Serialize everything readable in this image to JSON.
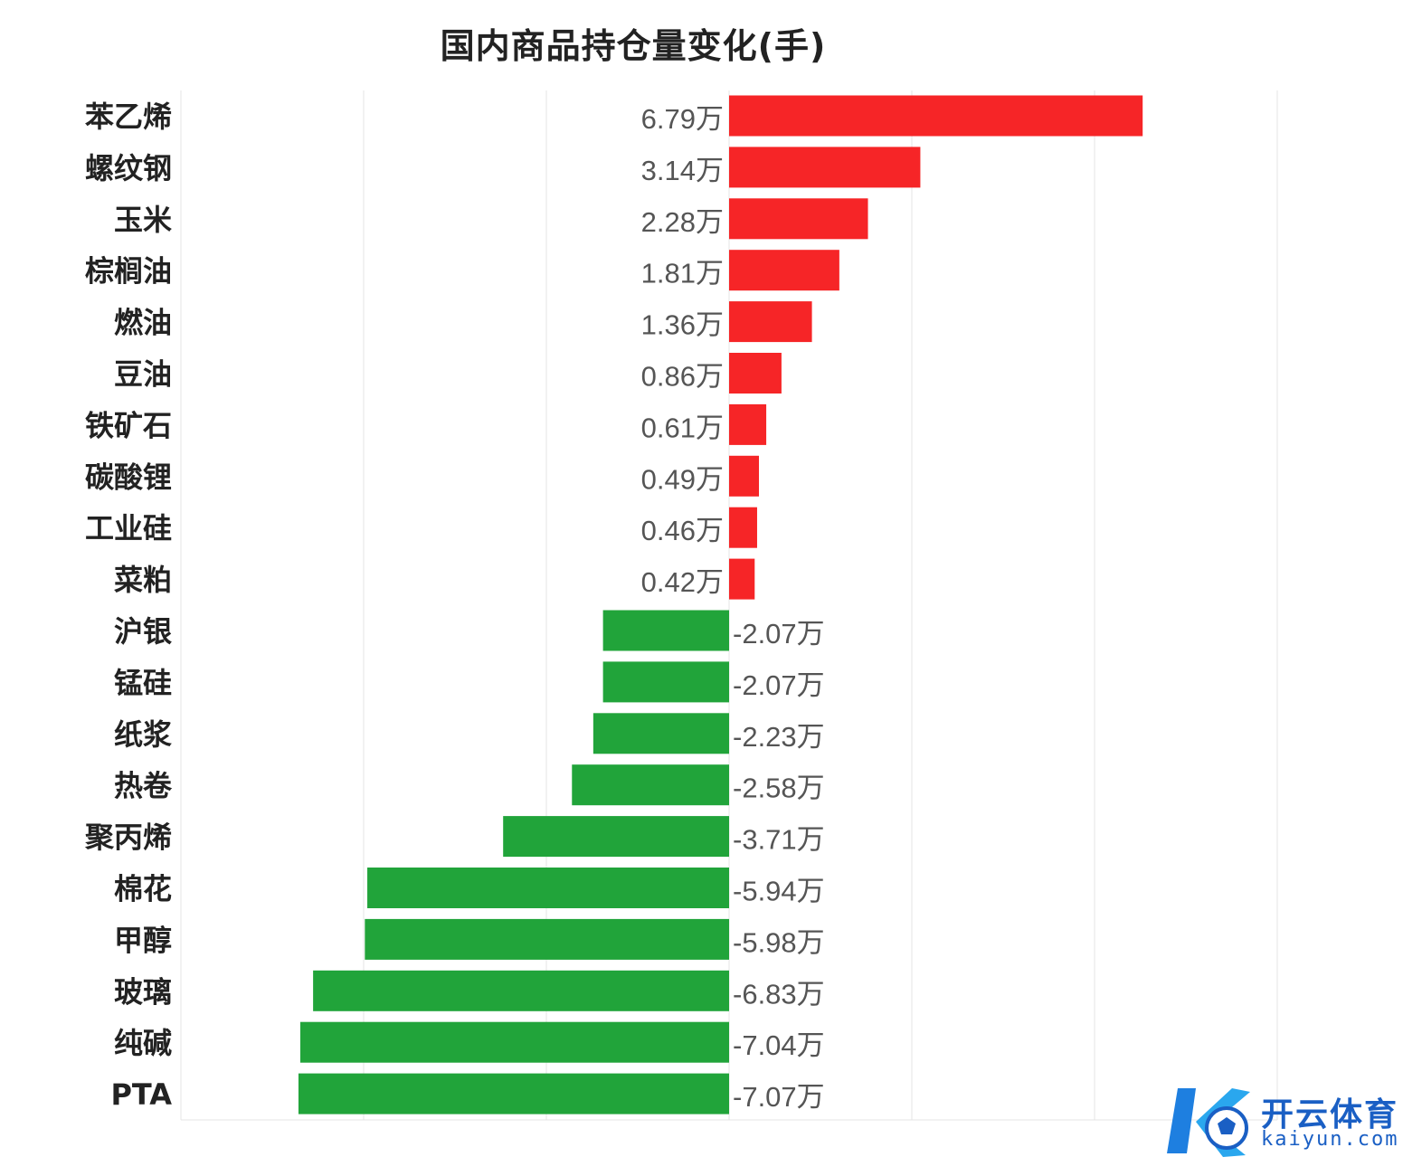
{
  "chart_data": {
    "type": "bar",
    "orientation": "horizontal",
    "title": "国内商品持仓量变化(手)",
    "unit": "万",
    "categories": [
      "苯乙烯",
      "螺纹钢",
      "玉米",
      "棕榈油",
      "燃油",
      "豆油",
      "铁矿石",
      "碳酸锂",
      "工业硅",
      "菜粕",
      "沪银",
      "锰硅",
      "纸浆",
      "热卷",
      "聚丙烯",
      "棉花",
      "甲醇",
      "玻璃",
      "纯碱",
      "PTA"
    ],
    "values": [
      6.79,
      3.14,
      2.28,
      1.81,
      1.36,
      0.86,
      0.61,
      0.49,
      0.46,
      0.42,
      -2.07,
      -2.07,
      -2.23,
      -2.58,
      -3.71,
      -5.94,
      -5.98,
      -6.83,
      -7.04,
      -7.07
    ],
    "data_labels": [
      "6.79万",
      "3.14万",
      "2.28万",
      "1.81万",
      "1.36万",
      "0.86万",
      "0.61万",
      "0.49万",
      "0.46万",
      "0.42万",
      "-2.07万",
      "-2.07万",
      "-2.23万",
      "-2.58万",
      "-3.71万",
      "-5.94万",
      "-5.98万",
      "-6.83万",
      "-7.04万",
      "-7.07万"
    ],
    "xlim": [
      -9,
      9
    ],
    "grid": true,
    "colors": {
      "positive": "#f62527",
      "negative": "#21a43a"
    }
  },
  "watermark": {
    "cn": "开云体育",
    "en": "kaiyun.com"
  }
}
